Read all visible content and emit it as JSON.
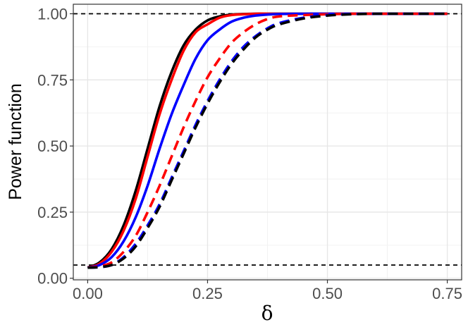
{
  "chart_data": {
    "type": "line",
    "xlabel": "δ",
    "ylabel": "Power function",
    "xlim": [
      -0.03,
      0.78
    ],
    "ylim": [
      -0.006,
      1.036
    ],
    "x_ticks": [
      0.0,
      0.25,
      0.5,
      0.75
    ],
    "x_tick_labels": [
      "0.00",
      "0.25",
      "0.50",
      "0.75"
    ],
    "y_ticks": [
      0.0,
      0.25,
      0.5,
      0.75,
      1.0
    ],
    "y_tick_labels": [
      "0.00",
      "0.25",
      "0.50",
      "0.75",
      "1.00"
    ],
    "grid": true,
    "reference_lines": [
      {
        "y": 1.0,
        "color": "#000000",
        "style": "dashed"
      },
      {
        "y": 0.05,
        "color": "#000000",
        "style": "dashed"
      }
    ],
    "x": [
      0.0,
      0.025,
      0.05,
      0.075,
      0.1,
      0.125,
      0.15,
      0.175,
      0.2,
      0.225,
      0.25,
      0.275,
      0.3,
      0.325,
      0.35,
      0.375,
      0.4,
      0.45,
      0.5,
      0.55,
      0.6,
      0.65,
      0.7,
      0.75
    ],
    "series": [
      {
        "color": "#000000",
        "style": "solid",
        "values": [
          0.04,
          0.06,
          0.11,
          0.2,
          0.33,
          0.49,
          0.65,
          0.78,
          0.88,
          0.94,
          0.975,
          0.99,
          0.997,
          0.999,
          1.0,
          1.0,
          1.0,
          1.0,
          1.0,
          1.0,
          1.0,
          1.0,
          1.0,
          1.0
        ]
      },
      {
        "color": "#ff0000",
        "style": "solid",
        "values": [
          0.04,
          0.055,
          0.1,
          0.18,
          0.3,
          0.46,
          0.62,
          0.75,
          0.86,
          0.93,
          0.96,
          0.985,
          0.995,
          0.998,
          1.0,
          1.0,
          1.0,
          1.0,
          1.0,
          1.0,
          1.0,
          1.0,
          1.0,
          1.0
        ]
      },
      {
        "color": "#0000ff",
        "style": "solid",
        "values": [
          0.04,
          0.05,
          0.08,
          0.14,
          0.23,
          0.35,
          0.49,
          0.62,
          0.73,
          0.83,
          0.9,
          0.94,
          0.97,
          0.985,
          0.993,
          0.997,
          0.999,
          1.0,
          1.0,
          1.0,
          1.0,
          1.0,
          1.0,
          1.0
        ]
      },
      {
        "color": "#ff0000",
        "style": "dashed",
        "values": [
          0.04,
          0.045,
          0.06,
          0.1,
          0.16,
          0.25,
          0.35,
          0.46,
          0.57,
          0.67,
          0.76,
          0.83,
          0.89,
          0.93,
          0.96,
          0.98,
          0.99,
          0.995,
          0.998,
          1.0,
          1.0,
          1.0,
          1.0,
          1.0
        ]
      },
      {
        "color": "#0000ff",
        "style": "dashed",
        "values": [
          0.04,
          0.042,
          0.05,
          0.08,
          0.13,
          0.2,
          0.28,
          0.38,
          0.48,
          0.58,
          0.67,
          0.75,
          0.82,
          0.875,
          0.915,
          0.945,
          0.965,
          0.985,
          0.995,
          0.999,
          1.0,
          1.0,
          1.0,
          1.0
        ]
      },
      {
        "color": "#000000",
        "style": "dashed",
        "values": [
          0.04,
          0.042,
          0.05,
          0.075,
          0.12,
          0.19,
          0.27,
          0.37,
          0.47,
          0.57,
          0.66,
          0.74,
          0.81,
          0.865,
          0.91,
          0.94,
          0.96,
          0.982,
          0.993,
          0.998,
          1.0,
          1.0,
          1.0,
          1.0
        ]
      }
    ]
  }
}
